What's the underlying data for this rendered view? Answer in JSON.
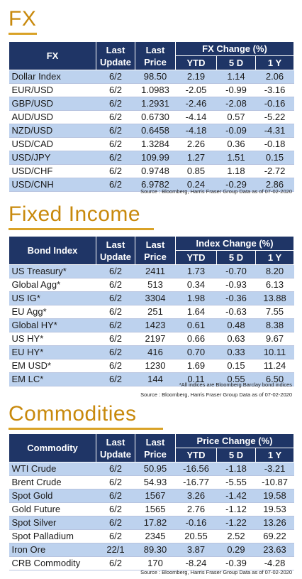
{
  "fx": {
    "title": "FX",
    "headers": {
      "name": "FX",
      "last_update": "Last Update",
      "last_price": "Last Price",
      "change_group": "FX Change (%)",
      "ytd": "YTD",
      "d5": "5 D",
      "y1": "1 Y"
    },
    "rows": [
      {
        "name": "Dollar Index",
        "update": "6/2",
        "price": "98.50",
        "ytd": "2.19",
        "d5": "1.14",
        "y1": "2.06"
      },
      {
        "name": "EUR/USD",
        "update": "6/2",
        "price": "1.0983",
        "ytd": "-2.05",
        "d5": "-0.99",
        "y1": "-3.16"
      },
      {
        "name": "GBP/USD",
        "update": "6/2",
        "price": "1.2931",
        "ytd": "-2.46",
        "d5": "-2.08",
        "y1": "-0.16"
      },
      {
        "name": "AUD/USD",
        "update": "6/2",
        "price": "0.6730",
        "ytd": "-4.14",
        "d5": "0.57",
        "y1": "-5.22"
      },
      {
        "name": "NZD/USD",
        "update": "6/2",
        "price": "0.6458",
        "ytd": "-4.18",
        "d5": "-0.09",
        "y1": "-4.31"
      },
      {
        "name": "USD/CAD",
        "update": "6/2",
        "price": "1.3284",
        "ytd": "2.26",
        "d5": "0.36",
        "y1": "-0.18"
      },
      {
        "name": "USD/JPY",
        "update": "6/2",
        "price": "109.99",
        "ytd": "1.27",
        "d5": "1.51",
        "y1": "0.15"
      },
      {
        "name": "USD/CHF",
        "update": "6/2",
        "price": "0.9748",
        "ytd": "0.85",
        "d5": "1.18",
        "y1": "-2.72"
      },
      {
        "name": "USD/CNH",
        "update": "6/2",
        "price": "6.9782",
        "ytd": "0.24",
        "d5": "-0.29",
        "y1": "2.86"
      }
    ],
    "source": "Source : Bloomberg, Harris Fraser Group Data as of 07-02-2020"
  },
  "fixed_income": {
    "title": "Fixed Income",
    "headers": {
      "name": "Bond Index",
      "last_update": "Last Update",
      "last_price": "Last Price",
      "change_group": "Index Change (%)",
      "ytd": "YTD",
      "d5": "5 D",
      "y1": "1 Y"
    },
    "rows": [
      {
        "name": "US Treasury*",
        "update": "6/2",
        "price": "2411",
        "ytd": "1.73",
        "d5": "-0.70",
        "y1": "8.20"
      },
      {
        "name": "Global Agg*",
        "update": "6/2",
        "price": "513",
        "ytd": "0.34",
        "d5": "-0.93",
        "y1": "6.13"
      },
      {
        "name": "US IG*",
        "update": "6/2",
        "price": "3304",
        "ytd": "1.98",
        "d5": "-0.36",
        "y1": "13.88"
      },
      {
        "name": "EU Agg*",
        "update": "6/2",
        "price": "251",
        "ytd": "1.64",
        "d5": "-0.63",
        "y1": "7.55"
      },
      {
        "name": "Global HY*",
        "update": "6/2",
        "price": "1423",
        "ytd": "0.61",
        "d5": "0.48",
        "y1": "8.38"
      },
      {
        "name": "US HY*",
        "update": "6/2",
        "price": "2197",
        "ytd": "0.66",
        "d5": "0.63",
        "y1": "9.67"
      },
      {
        "name": "EU HY*",
        "update": "6/2",
        "price": "416",
        "ytd": "0.70",
        "d5": "0.33",
        "y1": "10.11"
      },
      {
        "name": "EM USD*",
        "update": "6/2",
        "price": "1230",
        "ytd": "1.69",
        "d5": "0.15",
        "y1": "11.24"
      },
      {
        "name": "EM LC*",
        "update": "6/2",
        "price": "144",
        "ytd": "0.11",
        "d5": "0.55",
        "y1": "6.50"
      }
    ],
    "footnote": "*All indices are Bloomberg Barclay bond indices",
    "source": "Source : Bloomberg, Harris Fraser Group Data as of 07-02-2020"
  },
  "commodities": {
    "title": "Commodities",
    "headers": {
      "name": "Commodity",
      "last_update": "Last Update",
      "last_price": "Last Price",
      "change_group": "Price Change (%)",
      "ytd": "YTD",
      "d5": "5 D",
      "y1": "1 Y"
    },
    "rows": [
      {
        "name": "WTI Crude",
        "update": "6/2",
        "price": "50.95",
        "ytd": "-16.56",
        "d5": "-1.18",
        "y1": "-3.21"
      },
      {
        "name": "Brent Crude",
        "update": "6/2",
        "price": "54.93",
        "ytd": "-16.77",
        "d5": "-5.55",
        "y1": "-10.87"
      },
      {
        "name": "Spot Gold",
        "update": "6/2",
        "price": "1567",
        "ytd": "3.26",
        "d5": "-1.42",
        "y1": "19.58"
      },
      {
        "name": "Gold Future",
        "update": "6/2",
        "price": "1565",
        "ytd": "2.76",
        "d5": "-1.12",
        "y1": "19.53"
      },
      {
        "name": "Spot Silver",
        "update": "6/2",
        "price": "17.82",
        "ytd": "-0.16",
        "d5": "-1.22",
        "y1": "13.26"
      },
      {
        "name": "Spot Palladium",
        "update": "6/2",
        "price": "2345",
        "ytd": "20.55",
        "d5": "2.52",
        "y1": "69.22"
      },
      {
        "name": "Iron Ore",
        "update": "22/1",
        "price": "89.30",
        "ytd": "3.87",
        "d5": "0.29",
        "y1": "23.63"
      },
      {
        "name": "CRB Commodity",
        "update": "6/2",
        "price": "170",
        "ytd": "-8.24",
        "d5": "-0.39",
        "y1": "-4.28"
      }
    ],
    "source": "Source : Bloomberg, Harris Fraser Group Data as of 07-02-2020"
  },
  "colors": {
    "title_gold": "#c8890c",
    "header_navy": "#1f3566",
    "row_shade": "#bdd2ee"
  }
}
